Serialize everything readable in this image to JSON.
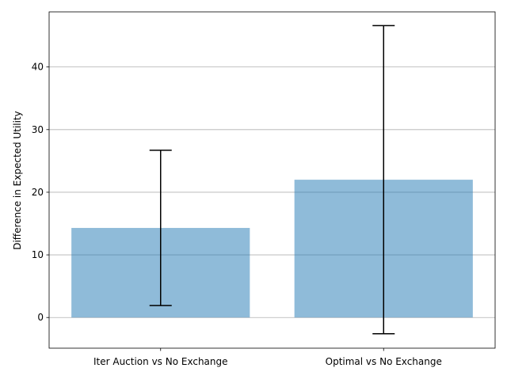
{
  "chart_data": {
    "type": "bar",
    "title": "",
    "xlabel": "",
    "ylabel": "Difference in Expected Utility",
    "categories": [
      "Iter Auction vs No Exchange",
      "Optimal vs No Exchange"
    ],
    "values": [
      14.3,
      22.0
    ],
    "error_low": [
      1.9,
      -2.6
    ],
    "error_high": [
      26.7,
      46.6
    ],
    "ylim": [
      -4.9,
      48.8
    ],
    "yticks": [
      0,
      10,
      20,
      30,
      40
    ],
    "grid": "horizontal",
    "legend": "none",
    "colors": {
      "bar": "#1f77b4",
      "bar_alpha": 0.5,
      "errorbar": "#000000",
      "grid": "#b0b0b0"
    }
  }
}
